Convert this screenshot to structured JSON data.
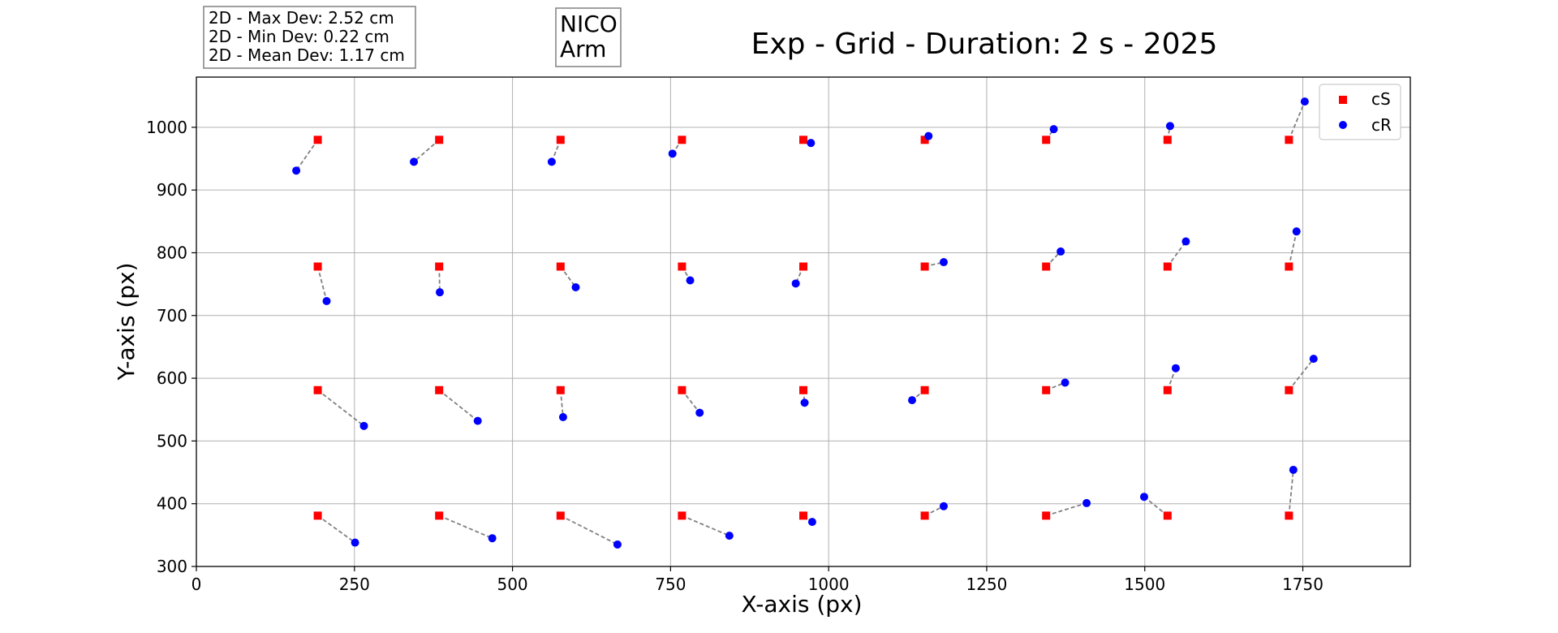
{
  "chart_data": {
    "type": "scatter",
    "title": "Exp - Grid - Duration: 2 s - 2025",
    "xlabel": "X-axis (px)",
    "ylabel": "Y-axis (px)",
    "xlim": [
      0,
      1920
    ],
    "ylim": [
      300,
      1080
    ],
    "xticks": [
      0,
      250,
      500,
      750,
      1000,
      1250,
      1500,
      1750
    ],
    "yticks": [
      300,
      400,
      500,
      600,
      700,
      800,
      900,
      1000
    ],
    "grid": true,
    "legend_position": "top-right",
    "stats_box": [
      "2D - Max Dev: 2.52 cm",
      "2D - Min Dev: 0.22 cm",
      "2D - Mean Dev: 1.17 cm"
    ],
    "robot_box": [
      "NICO",
      "Arm"
    ],
    "colors": {
      "cS": "#ff0000",
      "cR": "#0000ff",
      "connector": "#808080"
    },
    "series": [
      {
        "name": "cS",
        "marker": "square",
        "points": [
          [
            192,
            980
          ],
          [
            384,
            980
          ],
          [
            576,
            980
          ],
          [
            768,
            980
          ],
          [
            960,
            980
          ],
          [
            1152,
            980
          ],
          [
            1344,
            980
          ],
          [
            1536,
            980
          ],
          [
            1728,
            980
          ],
          [
            192,
            778
          ],
          [
            384,
            778
          ],
          [
            576,
            778
          ],
          [
            768,
            778
          ],
          [
            960,
            778
          ],
          [
            1152,
            778
          ],
          [
            1344,
            778
          ],
          [
            1536,
            778
          ],
          [
            1728,
            778
          ],
          [
            192,
            581
          ],
          [
            384,
            581
          ],
          [
            576,
            581
          ],
          [
            768,
            581
          ],
          [
            960,
            581
          ],
          [
            1152,
            581
          ],
          [
            1344,
            581
          ],
          [
            1536,
            581
          ],
          [
            1728,
            581
          ],
          [
            192,
            381
          ],
          [
            384,
            381
          ],
          [
            576,
            381
          ],
          [
            768,
            381
          ],
          [
            960,
            381
          ],
          [
            1152,
            381
          ],
          [
            1344,
            381
          ],
          [
            1536,
            381
          ],
          [
            1728,
            381
          ]
        ]
      },
      {
        "name": "cR",
        "marker": "circle",
        "points": [
          [
            158,
            931
          ],
          [
            344,
            945
          ],
          [
            562,
            945
          ],
          [
            753,
            958
          ],
          [
            972,
            975
          ],
          [
            1158,
            986
          ],
          [
            1356,
            997
          ],
          [
            1540,
            1002
          ],
          [
            1753,
            1041
          ],
          [
            206,
            723
          ],
          [
            385,
            737
          ],
          [
            600,
            745
          ],
          [
            781,
            756
          ],
          [
            948,
            751
          ],
          [
            1182,
            785
          ],
          [
            1367,
            802
          ],
          [
            1565,
            818
          ],
          [
            1740,
            834
          ],
          [
            265,
            524
          ],
          [
            445,
            532
          ],
          [
            580,
            538
          ],
          [
            796,
            545
          ],
          [
            962,
            561
          ],
          [
            1132,
            565
          ],
          [
            1374,
            593
          ],
          [
            1549,
            616
          ],
          [
            1767,
            631
          ],
          [
            251,
            338
          ],
          [
            468,
            345
          ],
          [
            666,
            335
          ],
          [
            843,
            349
          ],
          [
            974,
            371
          ],
          [
            1182,
            396
          ],
          [
            1408,
            401
          ],
          [
            1499,
            411
          ],
          [
            1735,
            454
          ]
        ]
      }
    ]
  }
}
